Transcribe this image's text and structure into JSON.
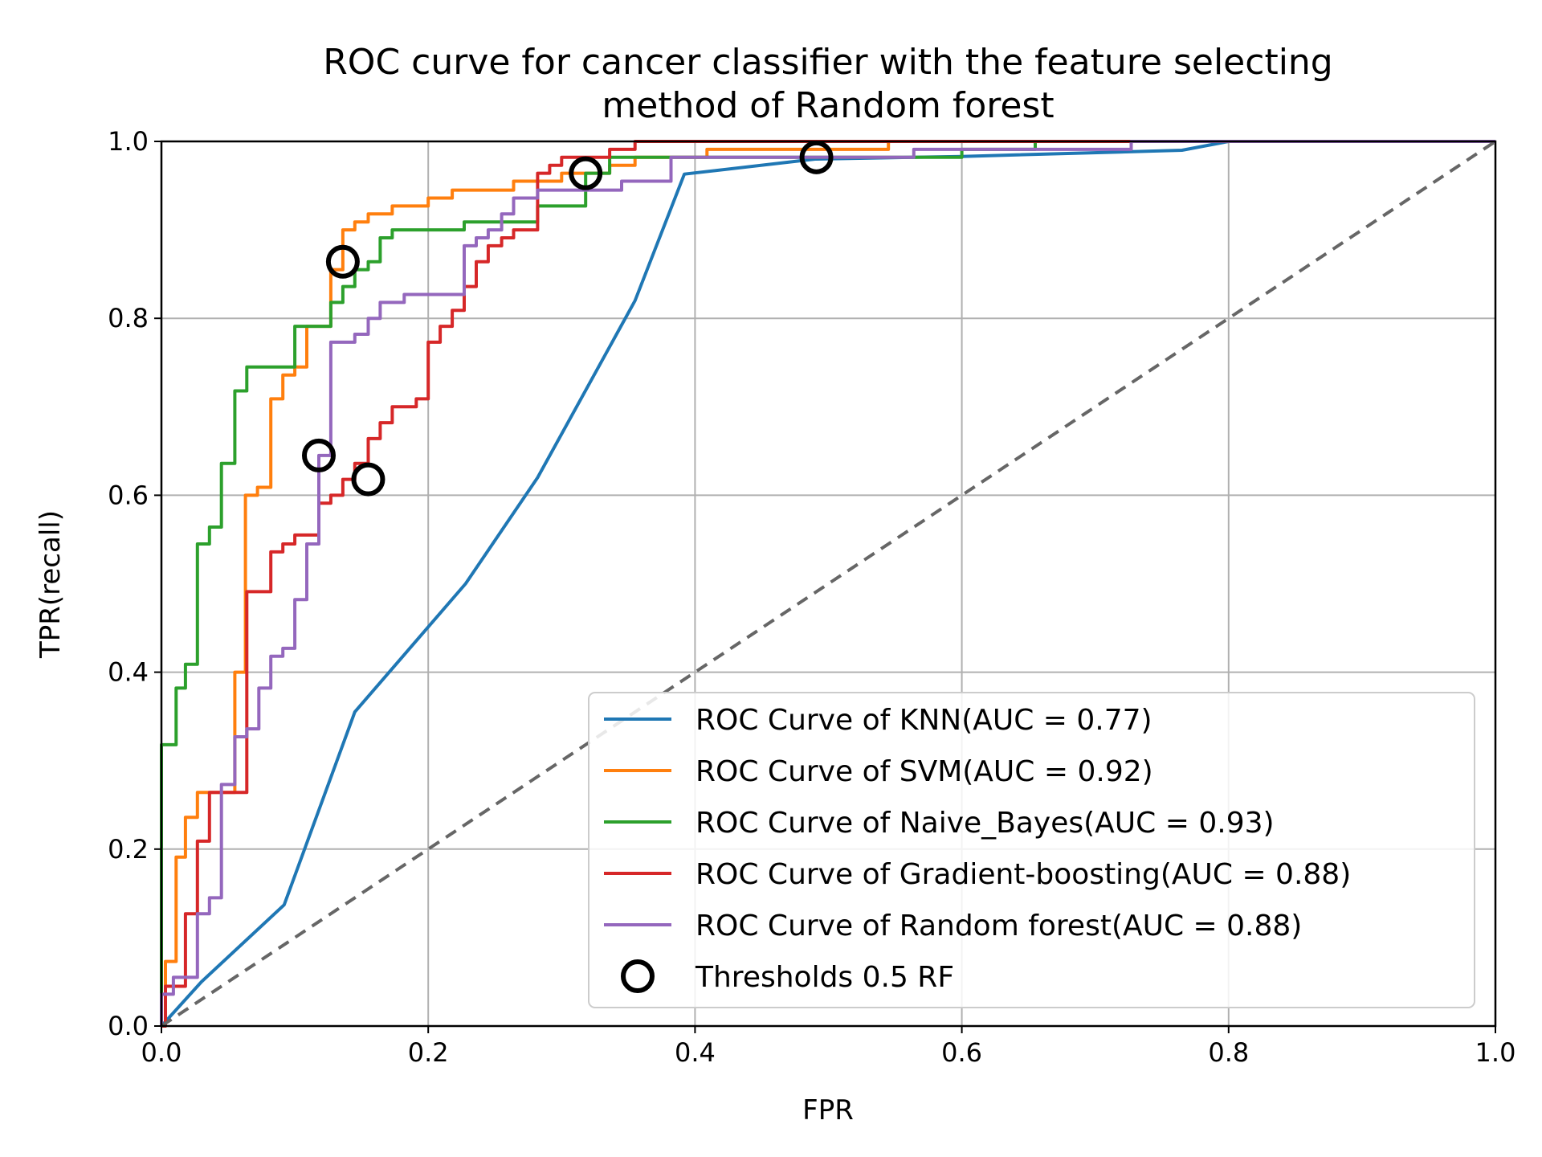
{
  "chart_data": {
    "type": "line",
    "title": "ROC curve for cancer classifier with the feature selecting",
    "subtitle": "method of Random forest",
    "xlabel": "FPR",
    "ylabel": "TPR(recall)",
    "xlim": [
      0.0,
      1.0
    ],
    "ylim": [
      0.0,
      1.0
    ],
    "xticks": [
      "0.0",
      "0.2",
      "0.4",
      "0.6",
      "0.8",
      "1.0"
    ],
    "yticks": [
      "0.0",
      "0.2",
      "0.4",
      "0.6",
      "0.8",
      "1.0"
    ],
    "grid": true,
    "legend_position": "lower-right",
    "series": [
      {
        "name": "ROC Curve of KNN(AUC = 0.77)",
        "color": "#1f77b4",
        "style": "line",
        "x": [
          0.0,
          0.03,
          0.092,
          0.145,
          0.228,
          0.282,
          0.355,
          0.392,
          0.49,
          0.6,
          0.765,
          0.8,
          1.0
        ],
        "y": [
          0.0,
          0.05,
          0.137,
          0.355,
          0.5,
          0.62,
          0.82,
          0.963,
          0.98,
          0.983,
          0.99,
          1.0,
          1.0
        ]
      },
      {
        "name": "ROC Curve of SVM(AUC = 0.92)",
        "color": "#ff7f0e",
        "style": "step",
        "x": [
          0.0,
          0.003,
          0.003,
          0.011,
          0.011,
          0.018,
          0.018,
          0.027,
          0.027,
          0.036,
          0.036,
          0.046,
          0.046,
          0.055,
          0.055,
          0.063,
          0.063,
          0.072,
          0.072,
          0.082,
          0.082,
          0.091,
          0.091,
          0.1,
          0.1,
          0.109,
          0.109,
          0.118,
          0.118,
          0.127,
          0.127,
          0.136,
          0.136,
          0.145,
          0.145,
          0.155,
          0.155,
          0.173,
          0.173,
          0.2,
          0.2,
          0.218,
          0.218,
          0.236,
          0.236,
          0.264,
          0.264,
          0.282,
          0.282,
          0.3,
          0.3,
          0.336,
          0.336,
          0.355,
          0.355,
          0.409,
          0.409,
          0.491,
          0.491,
          0.545,
          0.545,
          1.0
        ],
        "y": [
          0.0,
          0.0,
          0.073,
          0.073,
          0.191,
          0.191,
          0.236,
          0.236,
          0.264,
          0.264,
          0.264,
          0.264,
          0.264,
          0.264,
          0.4,
          0.4,
          0.6,
          0.6,
          0.609,
          0.609,
          0.709,
          0.709,
          0.736,
          0.736,
          0.745,
          0.745,
          0.791,
          0.791,
          0.791,
          0.791,
          0.855,
          0.855,
          0.9,
          0.9,
          0.909,
          0.909,
          0.918,
          0.918,
          0.927,
          0.927,
          0.936,
          0.936,
          0.945,
          0.945,
          0.945,
          0.945,
          0.955,
          0.955,
          0.955,
          0.955,
          0.964,
          0.964,
          0.973,
          0.973,
          0.982,
          0.982,
          0.991,
          0.991,
          0.991,
          0.991,
          1.0,
          1.0
        ]
      },
      {
        "name": "ROC Curve of Naive_Bayes(AUC = 0.93)",
        "color": "#2ca02c",
        "style": "step",
        "x": [
          0.0,
          0.0,
          0.011,
          0.011,
          0.018,
          0.018,
          0.027,
          0.027,
          0.036,
          0.036,
          0.045,
          0.045,
          0.055,
          0.055,
          0.064,
          0.064,
          0.1,
          0.1,
          0.127,
          0.127,
          0.136,
          0.136,
          0.145,
          0.145,
          0.155,
          0.155,
          0.164,
          0.164,
          0.173,
          0.173,
          0.227,
          0.227,
          0.25,
          0.25,
          0.282,
          0.282,
          0.309,
          0.309,
          0.318,
          0.318,
          0.336,
          0.336,
          0.409,
          0.409,
          0.564,
          0.564,
          0.6,
          0.6,
          0.655,
          0.655,
          1.0
        ],
        "y": [
          0.0,
          0.318,
          0.318,
          0.382,
          0.382,
          0.409,
          0.409,
          0.545,
          0.545,
          0.564,
          0.564,
          0.636,
          0.636,
          0.718,
          0.718,
          0.745,
          0.745,
          0.791,
          0.791,
          0.818,
          0.818,
          0.836,
          0.836,
          0.855,
          0.855,
          0.864,
          0.864,
          0.891,
          0.891,
          0.9,
          0.9,
          0.909,
          0.909,
          0.909,
          0.909,
          0.927,
          0.927,
          0.927,
          0.927,
          0.964,
          0.964,
          0.982,
          0.982,
          0.982,
          0.982,
          0.982,
          0.982,
          0.991,
          0.991,
          1.0,
          1.0
        ]
      },
      {
        "name": "ROC Curve of Gradient-boosting(AUC = 0.88)",
        "color": "#d62728",
        "style": "step",
        "x": [
          0.0,
          0.003,
          0.003,
          0.018,
          0.018,
          0.027,
          0.027,
          0.036,
          0.036,
          0.064,
          0.064,
          0.082,
          0.082,
          0.091,
          0.091,
          0.1,
          0.1,
          0.118,
          0.118,
          0.127,
          0.127,
          0.136,
          0.136,
          0.145,
          0.145,
          0.155,
          0.155,
          0.164,
          0.164,
          0.173,
          0.173,
          0.191,
          0.191,
          0.2,
          0.2,
          0.209,
          0.209,
          0.218,
          0.218,
          0.227,
          0.227,
          0.236,
          0.236,
          0.245,
          0.245,
          0.255,
          0.255,
          0.264,
          0.264,
          0.282,
          0.282,
          0.291,
          0.291,
          0.3,
          0.3,
          0.318,
          0.318,
          0.336,
          0.336,
          0.336,
          0.336,
          0.355,
          0.355,
          1.0
        ],
        "y": [
          0.0,
          0.0,
          0.045,
          0.045,
          0.127,
          0.127,
          0.209,
          0.209,
          0.264,
          0.264,
          0.491,
          0.491,
          0.536,
          0.536,
          0.545,
          0.545,
          0.555,
          0.555,
          0.591,
          0.591,
          0.6,
          0.6,
          0.618,
          0.618,
          0.636,
          0.636,
          0.664,
          0.664,
          0.682,
          0.682,
          0.7,
          0.7,
          0.709,
          0.709,
          0.773,
          0.773,
          0.791,
          0.791,
          0.809,
          0.809,
          0.836,
          0.836,
          0.864,
          0.864,
          0.882,
          0.882,
          0.891,
          0.891,
          0.9,
          0.9,
          0.964,
          0.964,
          0.973,
          0.973,
          0.982,
          0.982,
          0.982,
          0.982,
          0.991,
          0.991,
          0.991,
          0.991,
          1.0,
          1.0
        ]
      },
      {
        "name": "ROC Curve of Random forest(AUC = 0.88)",
        "color": "#9467bd",
        "style": "step",
        "x": [
          0.0,
          0.0,
          0.009,
          0.009,
          0.027,
          0.027,
          0.036,
          0.036,
          0.045,
          0.045,
          0.055,
          0.055,
          0.064,
          0.064,
          0.073,
          0.073,
          0.082,
          0.082,
          0.091,
          0.091,
          0.1,
          0.1,
          0.109,
          0.109,
          0.118,
          0.118,
          0.127,
          0.127,
          0.145,
          0.145,
          0.155,
          0.155,
          0.164,
          0.164,
          0.182,
          0.182,
          0.227,
          0.227,
          0.236,
          0.236,
          0.245,
          0.245,
          0.255,
          0.255,
          0.264,
          0.264,
          0.282,
          0.282,
          0.3,
          0.3,
          0.318,
          0.318,
          0.345,
          0.345,
          0.364,
          0.364,
          0.382,
          0.382,
          0.418,
          0.418,
          0.564,
          0.564,
          0.727,
          0.727,
          1.0
        ],
        "y": [
          0.0,
          0.036,
          0.036,
          0.055,
          0.055,
          0.127,
          0.127,
          0.145,
          0.145,
          0.273,
          0.273,
          0.327,
          0.327,
          0.336,
          0.336,
          0.382,
          0.382,
          0.418,
          0.418,
          0.427,
          0.427,
          0.482,
          0.482,
          0.545,
          0.545,
          0.645,
          0.645,
          0.773,
          0.773,
          0.782,
          0.782,
          0.8,
          0.8,
          0.818,
          0.818,
          0.827,
          0.827,
          0.882,
          0.882,
          0.891,
          0.891,
          0.9,
          0.9,
          0.918,
          0.918,
          0.936,
          0.936,
          0.945,
          0.945,
          0.945,
          0.945,
          0.945,
          0.945,
          0.955,
          0.955,
          0.955,
          0.955,
          0.982,
          0.982,
          0.982,
          0.982,
          0.991,
          0.991,
          1.0,
          1.0
        ]
      },
      {
        "name": "",
        "color": "#666666",
        "style": "dashed",
        "x": [
          0.0,
          1.0
        ],
        "y": [
          0.0,
          1.0
        ]
      }
    ],
    "markers": {
      "name": "Thresholds 0.5 RF",
      "color": "#000000",
      "x": [
        0.118,
        0.136,
        0.155,
        0.318,
        0.491
      ],
      "y": [
        0.645,
        0.864,
        0.618,
        0.964,
        0.982
      ]
    }
  }
}
